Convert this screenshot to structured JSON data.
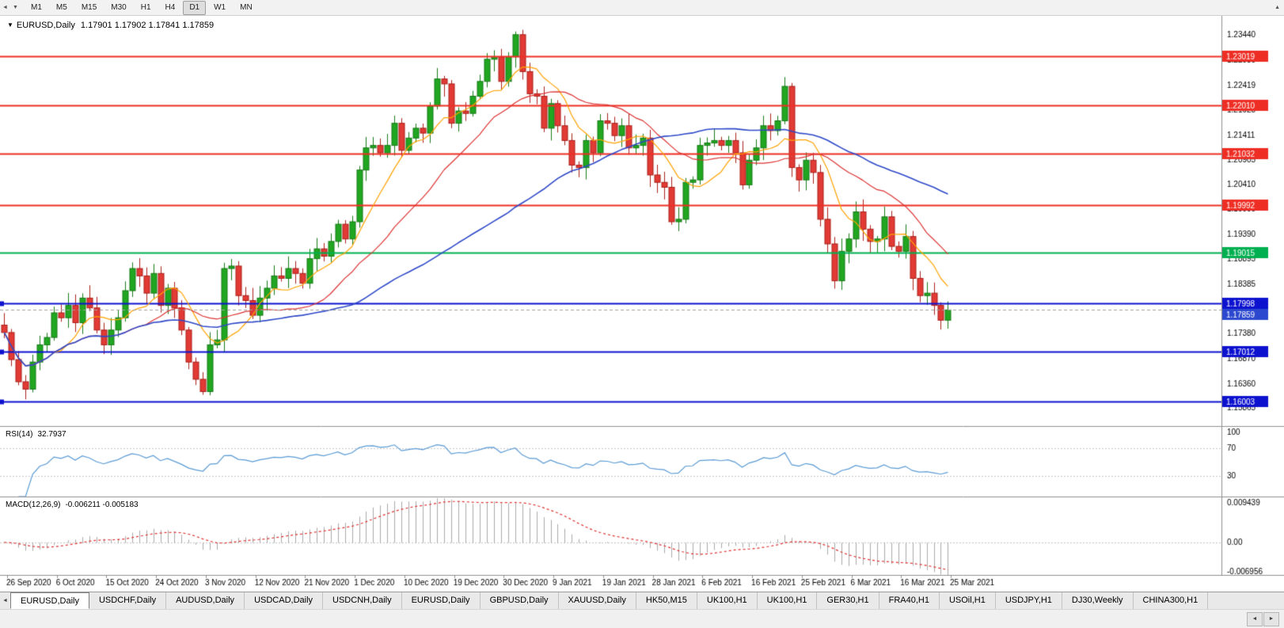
{
  "toolbar": {
    "timeframes": [
      "M1",
      "M5",
      "M15",
      "M30",
      "H1",
      "H4",
      "D1",
      "W1",
      "MN"
    ],
    "active_timeframe": "D1"
  },
  "nav": {
    "toolbar_handle": "◄",
    "toolbar_dropdown": "▼",
    "toolbar_up": "▲",
    "title_marker": "▼",
    "tab_scroll_left": "◄",
    "scroll_left": "◄",
    "scroll_right": "►"
  },
  "chart_header": {
    "symbol": "EURUSD,Daily",
    "ohlc": "1.17901 1.17902 1.17841 1.17859"
  },
  "indicators": {
    "rsi": {
      "title": "RSI(14)",
      "value": "32.7937",
      "axis_labels": [
        "100",
        "70",
        "30"
      ],
      "axis_values": [
        100,
        70,
        30
      ],
      "dashed_levels": [
        70,
        30
      ]
    },
    "macd": {
      "title": "MACD(12,26,9)",
      "value": "-0.006211 -0.005183",
      "axis_labels": [
        "0.009439",
        "0.00",
        "-0.006956"
      ],
      "axis_values": [
        0.009439,
        0,
        -0.006956
      ]
    }
  },
  "price_axis": {
    "ticks": [
      "1.23440",
      "1.22930",
      "1.22419",
      "1.21925",
      "1.21411",
      "1.20905",
      "1.20410",
      "1.19900",
      "1.19390",
      "1.18895",
      "1.18385",
      "1.17875",
      "1.17380",
      "1.16870",
      "1.16360",
      "1.15865"
    ]
  },
  "date_axis": {
    "labels": [
      "26 Sep 2020",
      "6 Oct 2020",
      "15 Oct 2020",
      "24 Oct 2020",
      "3 Nov 2020",
      "12 Nov 2020",
      "21 Nov 2020",
      "1 Dec 2020",
      "10 Dec 2020",
      "19 Dec 2020",
      "30 Dec 2020",
      "9 Jan 2021",
      "19 Jan 2021",
      "28 Jan 2021",
      "6 Feb 2021",
      "16 Feb 2021",
      "25 Feb 2021",
      "6 Mar 2021",
      "16 Mar 2021",
      "25 Mar 2021"
    ]
  },
  "hlines": [
    {
      "price": 1.23019,
      "label": "1.23019",
      "color": "#ee2e24",
      "width": 2,
      "marker": false
    },
    {
      "price": 1.2201,
      "label": "1.22010",
      "color": "#ee2e24",
      "width": 2,
      "marker": false
    },
    {
      "price": 1.21032,
      "label": "1.21032",
      "color": "#ee2e24",
      "width": 2,
      "marker": false
    },
    {
      "price": 1.19992,
      "label": "1.19992",
      "color": "#ee2e24",
      "width": 2,
      "marker": false
    },
    {
      "price": 1.19015,
      "label": "1.19015",
      "color": "#00b050",
      "width": 2,
      "marker": false
    },
    {
      "price": 1.17998,
      "label": "1.17998",
      "color": "#0d12cf",
      "width": 2,
      "marker": true
    },
    {
      "price": 1.17012,
      "label": "1.17012",
      "color": "#0d12cf",
      "width": 2,
      "marker": true
    },
    {
      "price": 1.16003,
      "label": "1.16003",
      "color": "#0d12cf",
      "width": 2,
      "marker": true
    }
  ],
  "current_price": {
    "value": 1.17859,
    "label": "1.17859",
    "line_color": "#a0a0a0",
    "tag_color": "#2b48cf"
  },
  "colors": {
    "background": "#ffffff",
    "candle_up": "#21a621",
    "candle_up_border": "#157a15",
    "candle_down": "#e23a34",
    "candle_down_border": "#aa1f1a",
    "rsi_line": "#5b9bd5",
    "macd_histogram": "#a9a9a9",
    "macd_signal": "#e03030",
    "dashed_level": "#c8c8c8",
    "separator": "#909090",
    "axis_text": "#000000",
    "tag_text": "#ffffff"
  },
  "chart_data": {
    "type": "candlestick",
    "symbol": "EURUSD",
    "timeframe": "Daily",
    "price_range": [
      1.155,
      1.238
    ],
    "first_open": 1.1755,
    "closes": [
      1.174,
      1.1685,
      1.164,
      1.1625,
      1.168,
      1.1715,
      1.173,
      1.178,
      1.177,
      1.1795,
      1.176,
      1.181,
      1.179,
      1.1745,
      1.1715,
      1.1745,
      1.177,
      1.1825,
      1.187,
      1.1855,
      1.182,
      1.186,
      1.1795,
      1.183,
      1.179,
      1.1745,
      1.168,
      1.1645,
      1.162,
      1.1715,
      1.1725,
      1.187,
      1.1875,
      1.1815,
      1.1805,
      1.1775,
      1.181,
      1.183,
      1.1855,
      1.185,
      1.187,
      1.186,
      1.184,
      1.189,
      1.191,
      1.1895,
      1.1925,
      1.196,
      1.193,
      1.1965,
      1.207,
      1.2115,
      1.212,
      1.2105,
      1.212,
      1.2165,
      1.211,
      1.2135,
      1.2155,
      1.2145,
      1.22,
      1.2255,
      1.2245,
      1.2165,
      1.219,
      1.2185,
      1.222,
      1.225,
      1.2295,
      1.23,
      1.225,
      1.23,
      1.2345,
      1.227,
      1.2225,
      1.222,
      1.2155,
      1.2205,
      1.216,
      1.213,
      1.208,
      1.2075,
      1.213,
      1.2105,
      1.217,
      1.2165,
      1.214,
      1.216,
      1.2115,
      1.212,
      1.2135,
      1.206,
      1.2045,
      1.2035,
      1.1965,
      1.197,
      1.2045,
      1.205,
      1.212,
      1.2125,
      1.213,
      1.212,
      1.213,
      1.2105,
      1.204,
      1.209,
      1.2115,
      1.216,
      1.215,
      1.217,
      1.224,
      1.2075,
      1.205,
      1.209,
      1.2065,
      1.197,
      1.192,
      1.1845,
      1.1905,
      1.193,
      1.1985,
      1.195,
      1.1925,
      1.193,
      1.1975,
      1.1915,
      1.1905,
      1.1935,
      1.185,
      1.1815,
      1.182,
      1.1795,
      1.1765,
      1.17859
    ],
    "moving_averages": [
      {
        "name": "ma-fast",
        "period": 8,
        "color": "#ffa200",
        "width": 1.2
      },
      {
        "name": "ma-mid",
        "period": 20,
        "color": "#dd3333",
        "width": 1.2
      },
      {
        "name": "ma-slow",
        "period": 50,
        "color": "#2f49c8",
        "width": 1.6
      }
    ],
    "rsi_period": 14,
    "macd": {
      "fast": 12,
      "slow": 26,
      "signal": 9,
      "range": [
        -0.006956,
        0.009439
      ]
    }
  },
  "tabs": {
    "active_index": 0,
    "items": [
      "EURUSD,Daily",
      "USDCHF,Daily",
      "AUDUSD,Daily",
      "USDCAD,Daily",
      "USDCNH,Daily",
      "EURUSD,Daily",
      "GBPUSD,Daily",
      "XAUUSD,Daily",
      "HK50,M15",
      "UK100,H1",
      "UK100,H1",
      "GER30,H1",
      "FRA40,H1",
      "USOil,H1",
      "USDJPY,H1",
      "DJ30,Weekly",
      "CHINA300,H1"
    ]
  }
}
